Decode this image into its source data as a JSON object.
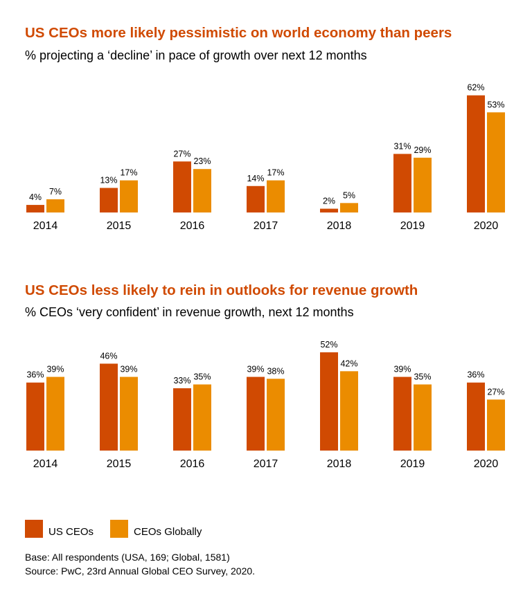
{
  "colors": {
    "us": "#d04a02",
    "global": "#eb8c00"
  },
  "chart_data": [
    {
      "type": "bar",
      "title": "US CEOs more likely pessimistic on world economy than peers",
      "subtitle": "% projecting a ‘decline’ in pace of growth over next 12 months",
      "categories": [
        "2014",
        "2015",
        "2016",
        "2017",
        "2018",
        "2019",
        "2020"
      ],
      "series": [
        {
          "name": "US CEOs",
          "values": [
            4,
            13,
            27,
            14,
            2,
            31,
            62
          ]
        },
        {
          "name": "CEOs Globally",
          "values": [
            7,
            17,
            23,
            17,
            5,
            29,
            53
          ]
        }
      ],
      "unit": "%",
      "ylim": [
        0,
        70
      ],
      "grid": false
    },
    {
      "type": "bar",
      "title": "US CEOs less likely to rein in outlooks for revenue growth",
      "subtitle": "% CEOs ‘very confident’ in revenue growth, next 12 months",
      "categories": [
        "2014",
        "2015",
        "2016",
        "2017",
        "2018",
        "2019",
        "2020"
      ],
      "series": [
        {
          "name": "US CEOs",
          "values": [
            36,
            46,
            33,
            39,
            52,
            39,
            36
          ]
        },
        {
          "name": "CEOs Globally",
          "values": [
            39,
            39,
            35,
            38,
            42,
            35,
            27
          ]
        }
      ],
      "unit": "%",
      "ylim": [
        0,
        60
      ],
      "grid": false
    }
  ],
  "legend": {
    "us": "US CEOs",
    "global": "CEOs Globally",
    "placement": "bottom-left"
  },
  "notes": {
    "base": "Base: All respondents (USA, 169; Global, 1581)",
    "source": "Source: PwC, 23rd Annual Global CEO Survey, 2020."
  }
}
